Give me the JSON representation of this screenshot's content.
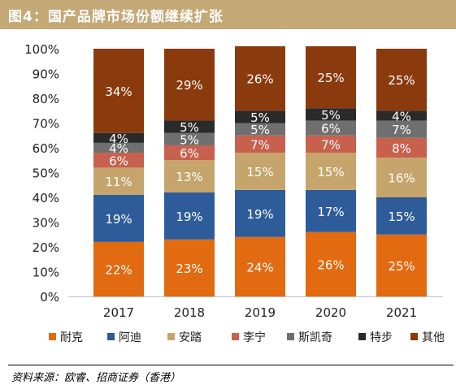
{
  "figure_title": "图4：国产品牌市场份额继续扩张",
  "source": "资料来源：欧睿、招商证券（香港）",
  "chart_data": {
    "type": "bar",
    "stacked": true,
    "percent": true,
    "categories": [
      "2017",
      "2018",
      "2019",
      "2020",
      "2021"
    ],
    "y_ticks": [
      "0%",
      "10%",
      "20%",
      "30%",
      "40%",
      "50%",
      "60%",
      "70%",
      "80%",
      "90%",
      "100%"
    ],
    "ylim": [
      0,
      100
    ],
    "grid": false,
    "legend_position": "bottom",
    "series": [
      {
        "name": "耐克",
        "color": "#E26A10",
        "label_color": "#ffffff",
        "values": [
          22,
          23,
          24,
          26,
          25
        ]
      },
      {
        "name": "阿迪",
        "color": "#2E5B9A",
        "label_color": "#ffffff",
        "values": [
          19,
          19,
          19,
          17,
          15
        ]
      },
      {
        "name": "安踏",
        "color": "#C6A56C",
        "label_color": "#ffffff",
        "values": [
          11,
          13,
          15,
          15,
          16
        ]
      },
      {
        "name": "李宁",
        "color": "#C8604E",
        "label_color": "#ffffff",
        "values": [
          6,
          6,
          7,
          7,
          8
        ]
      },
      {
        "name": "斯凯奇",
        "color": "#6F6F6F",
        "label_color": "#ffffff",
        "values": [
          4,
          5,
          5,
          6,
          7
        ]
      },
      {
        "name": "特步",
        "color": "#2A2A2A",
        "label_color": "#ffffff",
        "values": [
          4,
          5,
          5,
          5,
          4
        ]
      },
      {
        "name": "其他",
        "color": "#8A3A0C",
        "label_color": "#ffffff",
        "values": [
          34,
          29,
          26,
          25,
          25
        ]
      }
    ]
  }
}
